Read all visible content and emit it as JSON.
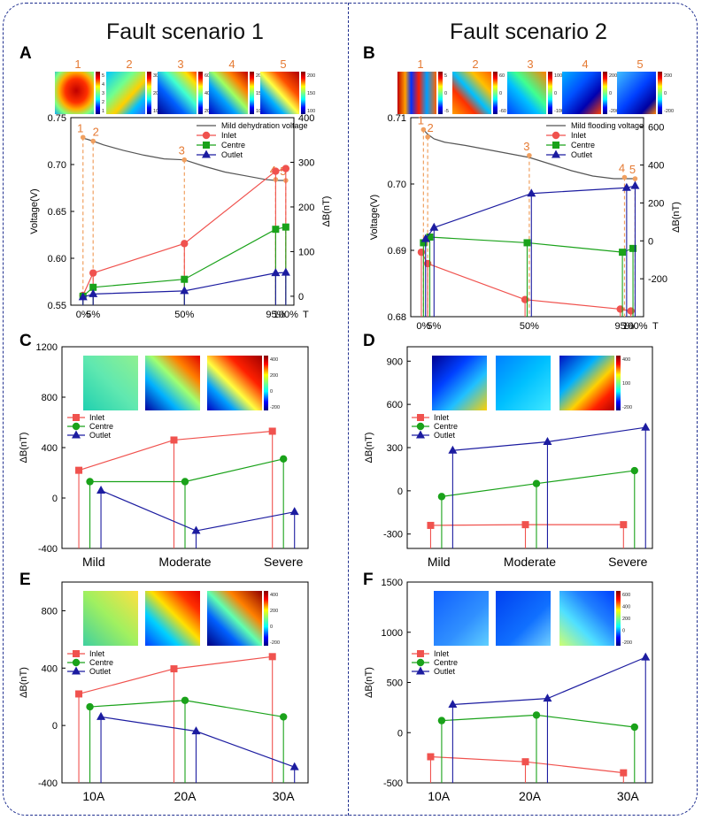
{
  "scenarios": [
    "Fault scenario 1",
    "Fault scenario 2"
  ],
  "chart_data": [
    {
      "id": "A",
      "type": "line",
      "map_labels": [
        "1",
        "2",
        "3",
        "4",
        "5"
      ],
      "map_ticks": [
        [
          "5",
          "4",
          "3",
          "2",
          "1"
        ],
        [
          "30",
          "20",
          "10"
        ],
        [
          "60",
          "40",
          "20"
        ],
        [
          "200",
          "150",
          "100"
        ],
        [
          "200",
          "150",
          "100"
        ]
      ],
      "x_positions": [
        0,
        2.5,
        25,
        47.5,
        50
      ],
      "xticks": [
        {
          "v": 0,
          "l": "0%"
        },
        {
          "v": 2.5,
          "l": "5%"
        },
        {
          "v": 25,
          "l": "50%"
        },
        {
          "v": 47.5,
          "l": "95%"
        },
        {
          "v": 50,
          "l": "100%"
        }
      ],
      "x_end_label": "T",
      "xlim": [
        -3,
        52
      ],
      "ylabel": "Voltage(V)",
      "ylim": [
        0.55,
        0.75
      ],
      "yticks": [
        0.55,
        0.6,
        0.65,
        0.7,
        0.75
      ],
      "ytick_labels": [
        "0.55",
        "0.60",
        "0.65",
        "0.70",
        "0.75"
      ],
      "y2label": "ΔB(nT)",
      "y2lim": [
        -20,
        400
      ],
      "y2ticks": [
        0,
        100,
        200,
        300,
        400
      ],
      "voltage": {
        "name": "Mild dehydration voltage",
        "x": [
          0,
          1,
          2.5,
          5,
          10,
          15,
          20,
          25,
          30,
          35,
          40,
          45,
          47.5,
          50
        ],
        "y": [
          0.728,
          0.727,
          0.725,
          0.721,
          0.715,
          0.71,
          0.706,
          0.705,
          0.698,
          0.692,
          0.688,
          0.684,
          0.683,
          0.683
        ]
      },
      "markers": {
        "x": [
          0,
          2.5,
          25,
          47.5,
          50
        ],
        "y": [
          0.729,
          0.725,
          0.705,
          0.684,
          0.683
        ],
        "labels": [
          "1",
          "2",
          "3",
          "4",
          "5"
        ]
      },
      "series": [
        {
          "name": "Inlet",
          "color": "#f0524e",
          "marker": "circle",
          "x": [
            0,
            2.5,
            25,
            47.5,
            50
          ],
          "values": [
            2,
            52,
            118,
            280,
            286
          ]
        },
        {
          "name": "Centre",
          "color": "#1aa21a",
          "marker": "square",
          "x": [
            0,
            2.5,
            25,
            47.5,
            50
          ],
          "values": [
            0,
            20,
            38,
            150,
            155
          ]
        },
        {
          "name": "Outlet",
          "color": "#1c1ca0",
          "marker": "triangle",
          "x": [
            0,
            2.5,
            25,
            47.5,
            50
          ],
          "values": [
            -2,
            5,
            12,
            52,
            53
          ]
        }
      ]
    },
    {
      "id": "B",
      "type": "line",
      "map_labels": [
        "1",
        "2",
        "3",
        "4",
        "5"
      ],
      "map_ticks": [
        [
          "5",
          "0",
          "-5"
        ],
        [
          "60",
          "0",
          "-60"
        ],
        [
          "100",
          "0",
          "-100"
        ],
        [
          "200",
          "0",
          "-200"
        ],
        [
          "200",
          "0",
          "-200"
        ]
      ],
      "x_positions": [
        0,
        2.5,
        25,
        47.5,
        50
      ],
      "xticks": [
        {
          "v": 0,
          "l": "0%"
        },
        {
          "v": 2.5,
          "l": "5%"
        },
        {
          "v": 25,
          "l": "50%"
        },
        {
          "v": 47.5,
          "l": "95%"
        },
        {
          "v": 50,
          "l": "100%"
        }
      ],
      "x_end_label": "T",
      "xlim": [
        -3,
        52
      ],
      "ylabel": "Voltage(V)",
      "ylim": [
        0.68,
        0.71
      ],
      "yticks": [
        0.68,
        0.69,
        0.7,
        0.71
      ],
      "ytick_labels": [
        "0.68",
        "0.69",
        "0.70",
        "0.71"
      ],
      "y2label": "ΔB(nT)",
      "y2lim": [
        -400,
        650
      ],
      "y2ticks": [
        -200,
        0,
        200,
        400,
        600
      ],
      "voltage": {
        "name": "Mild flooding voltage",
        "x": [
          0,
          1,
          2.5,
          5,
          10,
          15,
          20,
          25,
          30,
          35,
          40,
          45,
          47.5,
          50
        ],
        "y": [
          0.7082,
          0.7075,
          0.7068,
          0.7063,
          0.7058,
          0.7052,
          0.7046,
          0.704,
          0.703,
          0.702,
          0.7012,
          0.7008,
          0.7008,
          0.7008
        ]
      },
      "markers": {
        "x": [
          0,
          1,
          25,
          47.5,
          50
        ],
        "y": [
          0.7082,
          0.7071,
          0.7043,
          0.701,
          0.7008
        ],
        "labels": [
          "1",
          "2",
          "3",
          "4",
          "5"
        ]
      },
      "series": [
        {
          "name": "Inlet",
          "color": "#f0524e",
          "marker": "circle",
          "x": [
            -0.5,
            1,
            24,
            46.5,
            49
          ],
          "values": [
            -60,
            -120,
            -310,
            -360,
            -370
          ]
        },
        {
          "name": "Centre",
          "color": "#1aa21a",
          "marker": "square",
          "x": [
            0,
            1.5,
            24.5,
            47,
            49.5
          ],
          "values": [
            -10,
            20,
            -10,
            -60,
            -40
          ]
        },
        {
          "name": "Outlet",
          "color": "#1c1ca0",
          "marker": "triangle",
          "x": [
            0.5,
            2.5,
            25.5,
            48,
            50
          ],
          "values": [
            10,
            70,
            250,
            280,
            290
          ]
        }
      ]
    },
    {
      "id": "C",
      "type": "line",
      "categories": [
        "Mild",
        "Moderate",
        "Severe"
      ],
      "ylabel": "ΔB(nT)",
      "ylim": [
        -400,
        1200
      ],
      "yticks": [
        -400,
        0,
        400,
        800,
        1200
      ],
      "map_ticks": [
        "400",
        "200",
        "0",
        "-200"
      ],
      "series": [
        {
          "name": "Inlet",
          "color": "#f0524e",
          "marker": "square",
          "values": [
            220,
            460,
            530
          ]
        },
        {
          "name": "Centre",
          "color": "#1aa21a",
          "marker": "circle",
          "values": [
            130,
            130,
            310
          ]
        },
        {
          "name": "Outlet",
          "color": "#1c1ca0",
          "marker": "triangle",
          "values": [
            60,
            -260,
            -110
          ]
        }
      ]
    },
    {
      "id": "D",
      "type": "line",
      "categories": [
        "Mild",
        "Moderate",
        "Severe"
      ],
      "ylabel": "ΔB(nT)",
      "ylim": [
        -400,
        1000
      ],
      "yticks": [
        -300,
        0,
        300,
        600,
        900
      ],
      "map_ticks": [
        "400",
        "100",
        "-200"
      ],
      "series": [
        {
          "name": "Inlet",
          "color": "#f0524e",
          "marker": "square",
          "values": [
            -240,
            -235,
            -235
          ]
        },
        {
          "name": "Centre",
          "color": "#1aa21a",
          "marker": "circle",
          "values": [
            -40,
            50,
            140
          ]
        },
        {
          "name": "Outlet",
          "color": "#1c1ca0",
          "marker": "triangle",
          "values": [
            280,
            340,
            440
          ]
        }
      ]
    },
    {
      "id": "E",
      "type": "line",
      "categories": [
        "10A",
        "20A",
        "30A"
      ],
      "ylabel": "ΔB(nT)",
      "ylim": [
        -400,
        1000
      ],
      "yticks": [
        -400,
        0,
        400,
        800
      ],
      "map_ticks": [
        "400",
        "200",
        "0",
        "-200"
      ],
      "series": [
        {
          "name": "Inlet",
          "color": "#f0524e",
          "marker": "square",
          "values": [
            220,
            395,
            480
          ]
        },
        {
          "name": "Centre",
          "color": "#1aa21a",
          "marker": "circle",
          "values": [
            130,
            175,
            60
          ]
        },
        {
          "name": "Outlet",
          "color": "#1c1ca0",
          "marker": "triangle",
          "values": [
            60,
            -40,
            -290
          ]
        }
      ]
    },
    {
      "id": "F",
      "type": "line",
      "categories": [
        "10A",
        "20A",
        "30A"
      ],
      "ylabel": "ΔB(nT)",
      "ylim": [
        -500,
        1500
      ],
      "yticks": [
        -500,
        0,
        500,
        1000,
        1500
      ],
      "map_ticks": [
        "600",
        "400",
        "200",
        "0",
        "-200"
      ],
      "series": [
        {
          "name": "Inlet",
          "color": "#f0524e",
          "marker": "square",
          "values": [
            -240,
            -290,
            -400
          ]
        },
        {
          "name": "Centre",
          "color": "#1aa21a",
          "marker": "circle",
          "values": [
            120,
            175,
            55
          ]
        },
        {
          "name": "Outlet",
          "color": "#1c1ca0",
          "marker": "triangle",
          "values": [
            280,
            340,
            750
          ]
        }
      ]
    }
  ]
}
